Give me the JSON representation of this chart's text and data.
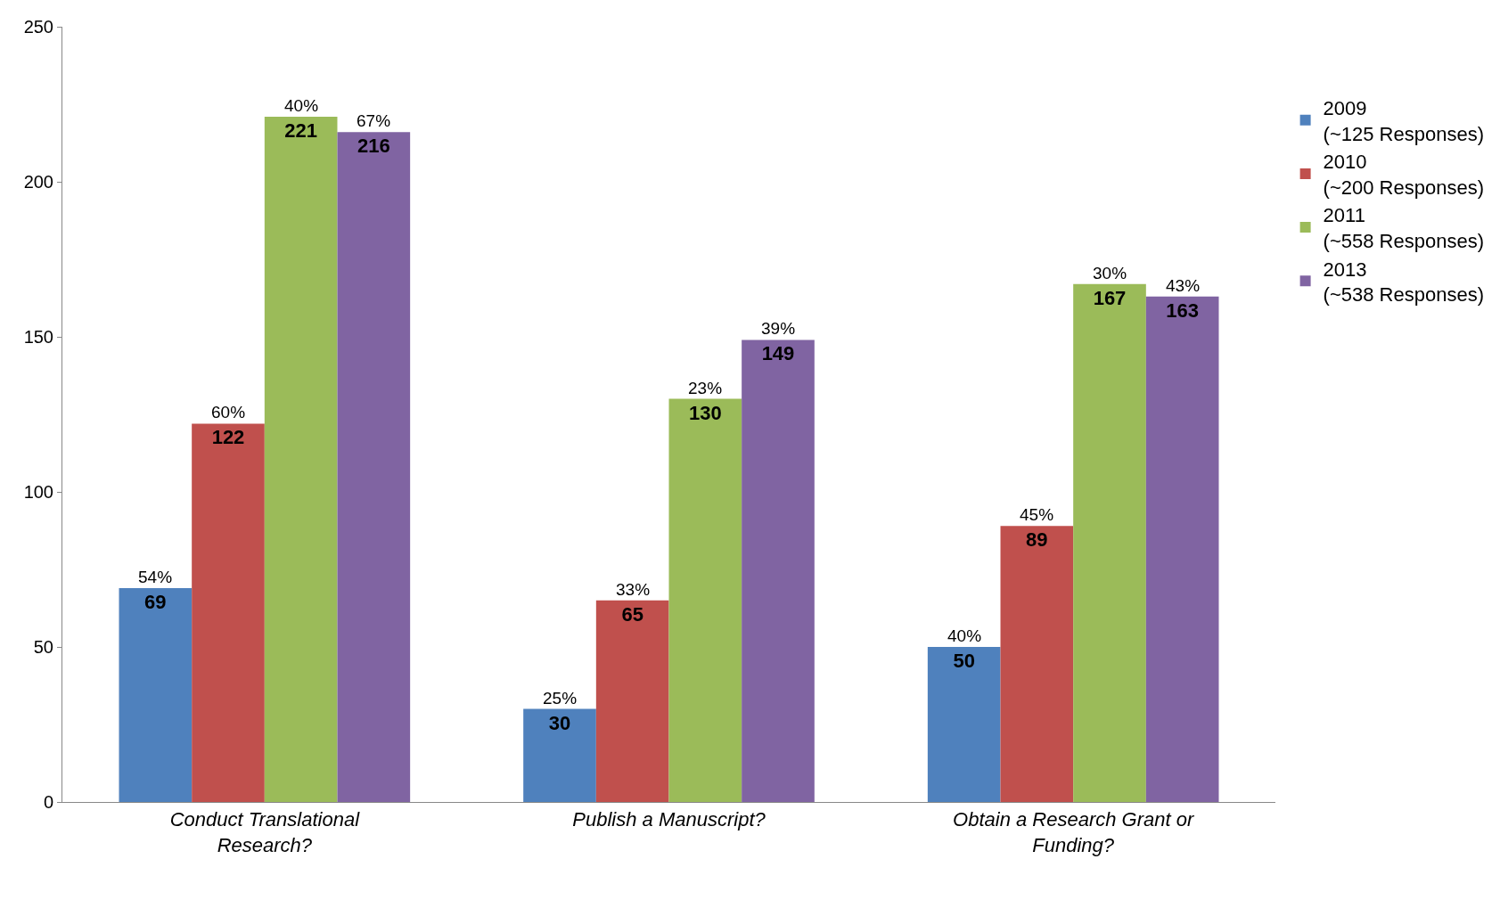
{
  "chart_data": {
    "type": "bar",
    "categories": [
      "Conduct Translational\nResearch?",
      "Publish a Manuscript?",
      "Obtain a Research Grant or\nFunding?"
    ],
    "series": [
      {
        "name": "2009\n(~125 Responses)",
        "color": "#4f81bd",
        "values": [
          69,
          30,
          50
        ]
      },
      {
        "name": "2010\n(~200 Responses)",
        "color": "#c0504d",
        "values": [
          122,
          65,
          89
        ]
      },
      {
        "name": "2011\n(~558 Responses)",
        "color": "#9bbb59",
        "values": [
          221,
          130,
          167
        ]
      },
      {
        "name": "2013\n(~538 Responses)",
        "color": "#8064a2",
        "values": [
          216,
          149,
          163
        ]
      }
    ],
    "annotations": [
      "54%",
      "60%",
      "40%",
      "67%",
      "25%",
      "33%",
      "23%",
      "39%",
      "40%",
      "45%",
      "30%",
      "43%"
    ],
    "ylim": [
      0,
      250
    ],
    "yticks": [
      0,
      50,
      100,
      150,
      200,
      250
    ],
    "data_labels": true,
    "legend": "right"
  }
}
